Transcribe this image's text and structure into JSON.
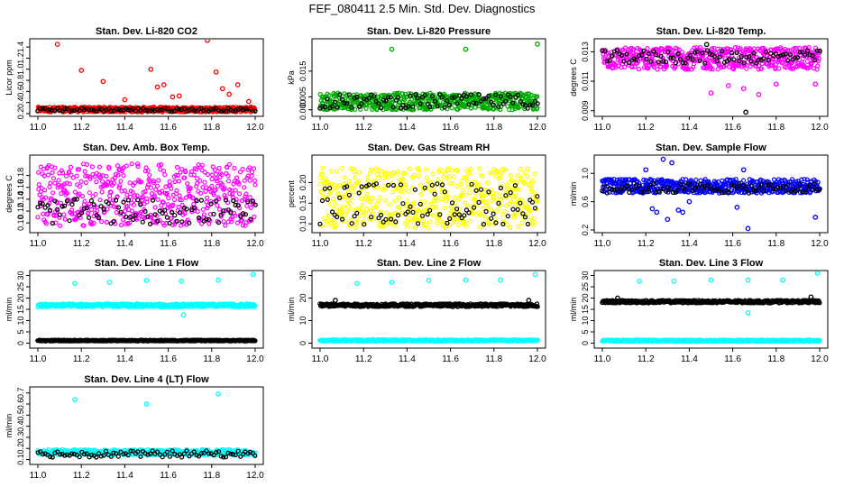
{
  "figure": {
    "title": "FEF_080411  2.5 Min. Std. Dev. Diagnostics"
  },
  "chart_data": [
    {
      "type": "scatter",
      "title": "Stan. Dev. Li-820 CO2",
      "ylabel": "Licor ppm",
      "xlim": [
        11.0,
        12.0
      ],
      "ylim": [
        0.2,
        1.5
      ],
      "xticks": [
        "11.0",
        "11.2",
        "11.4",
        "11.6",
        "11.8",
        "12.0"
      ],
      "yticks": [
        "0.2",
        "0.4",
        "0.6",
        "0.8",
        "1.0",
        "1.2",
        "1.4"
      ],
      "ytick_values": [
        0.2,
        0.4,
        0.6,
        0.8,
        1.0,
        1.2,
        1.4
      ],
      "series": [
        {
          "name": "primary",
          "color": "#ff0000",
          "pattern": {
            "low": 0.23,
            "high": 0.32
          }
        },
        {
          "name": "secondary",
          "color": "#000000",
          "pattern": {
            "low": 0.24,
            "high": 0.3,
            "sparse": true
          }
        },
        {
          "name": "outliers",
          "color": "#ff0000",
          "points": [
            [
              11.09,
              1.45
            ],
            [
              11.2,
              0.98
            ],
            [
              11.3,
              0.78
            ],
            [
              11.4,
              0.45
            ],
            [
              11.52,
              1.0
            ],
            [
              11.55,
              0.68
            ],
            [
              11.58,
              0.72
            ],
            [
              11.62,
              0.5
            ],
            [
              11.65,
              0.52
            ],
            [
              11.78,
              1.52
            ],
            [
              11.82,
              0.95
            ],
            [
              11.85,
              0.65
            ],
            [
              11.88,
              0.55
            ],
            [
              11.92,
              0.72
            ],
            [
              11.97,
              0.42
            ],
            [
              11.98,
              0.32
            ]
          ]
        }
      ]
    },
    {
      "type": "scatter",
      "title": "Stan. Dev. Li-820 Pressure",
      "ylabel": "kPa",
      "xlim": [
        11.0,
        12.0
      ],
      "ylim": [
        -0.0015,
        0.0265
      ],
      "xticks": [
        "11.0",
        "11.2",
        "11.4",
        "11.6",
        "11.8",
        "12.0"
      ],
      "yticks": [
        "0.000",
        "0.005",
        "0.015"
      ],
      "ytick_values": [
        0.0,
        0.005,
        0.015
      ],
      "series": [
        {
          "name": "primary",
          "color": "#00aa00",
          "pattern": {
            "low": 0.0,
            "high": 0.0065
          }
        },
        {
          "name": "secondary",
          "color": "#000000",
          "pattern": {
            "low": 0.0005,
            "high": 0.006,
            "sparse": true
          }
        },
        {
          "name": "outliers",
          "color": "#00aa00",
          "points": [
            [
              11.33,
              0.0235
            ],
            [
              11.67,
              0.0235
            ],
            [
              12.0,
              0.0255
            ]
          ]
        }
      ]
    },
    {
      "type": "scatter",
      "title": "Stan. Dev. Li-820 Temp.",
      "ylabel": "degrees C",
      "xlim": [
        11.0,
        12.0
      ],
      "ylim": [
        0.0088,
        0.0137
      ],
      "xticks": [
        "11.0",
        "11.2",
        "11.4",
        "11.6",
        "11.8",
        "12.0"
      ],
      "yticks": [
        "0.009",
        "0.011",
        "0.013"
      ],
      "ytick_values": [
        0.009,
        0.011,
        0.013
      ],
      "series": [
        {
          "name": "primary",
          "color": "#ff00ff",
          "pattern": {
            "low": 0.0118,
            "high": 0.0133
          }
        },
        {
          "name": "secondary",
          "color": "#000000",
          "pattern": {
            "low": 0.0122,
            "high": 0.0131,
            "sparse": true
          }
        },
        {
          "name": "outliers",
          "color": "#ff00ff",
          "points": [
            [
              11.5,
              0.0102
            ],
            [
              11.58,
              0.0107
            ],
            [
              11.65,
              0.0105
            ],
            [
              11.72,
              0.0101
            ],
            [
              11.8,
              0.0108
            ],
            [
              11.98,
              0.0108
            ]
          ]
        },
        {
          "name": "outliers-black",
          "color": "#000000",
          "points": [
            [
              11.66,
              0.0089
            ],
            [
              11.48,
              0.0135
            ]
          ]
        }
      ]
    },
    {
      "type": "scatter",
      "title": "Stan. Dev. Amb. Box Temp.",
      "ylabel": "degrees C",
      "xlim": [
        11.0,
        12.0
      ],
      "ylim": [
        0.088,
        0.21
      ],
      "xticks": [
        "11.0",
        "11.2",
        "11.4",
        "11.6",
        "11.8",
        "12.0"
      ],
      "yticks": [
        "0.10",
        "0.12",
        "0.14",
        "0.16",
        "0.18"
      ],
      "ytick_values": [
        0.1,
        0.12,
        0.14,
        0.16,
        0.18
      ],
      "series": [
        {
          "name": "primary",
          "color": "#ff00ff",
          "pattern": {
            "low": 0.095,
            "high": 0.2
          }
        },
        {
          "name": "secondary",
          "color": "#000000",
          "pattern": {
            "low": 0.098,
            "high": 0.14,
            "sparse": true
          }
        }
      ]
    },
    {
      "type": "scatter",
      "title": "Stan. Dev. Gas Stream RH",
      "ylabel": "percent",
      "xlim": [
        11.0,
        12.0
      ],
      "ylim": [
        0.085,
        0.26
      ],
      "xticks": [
        "11.0",
        "11.2",
        "11.4",
        "11.6",
        "11.8",
        "12.0"
      ],
      "yticks": [
        "0.10",
        "0.15",
        "0.20"
      ],
      "ytick_values": [
        0.1,
        0.15,
        0.2
      ],
      "series": [
        {
          "name": "primary",
          "color": "#ffff00",
          "pattern": {
            "low": 0.09,
            "high": 0.235
          }
        },
        {
          "name": "secondary",
          "color": "#000000",
          "pattern": {
            "low": 0.098,
            "high": 0.2,
            "sparse": true
          }
        }
      ]
    },
    {
      "type": "scatter",
      "title": "Stan. Dev. Sample Flow",
      "ylabel": "ml/min",
      "xlim": [
        11.0,
        12.0
      ],
      "ylim": [
        0.2,
        1.22
      ],
      "xticks": [
        "11.0",
        "11.2",
        "11.4",
        "11.6",
        "11.8",
        "12.0"
      ],
      "yticks": [
        "0.2",
        "0.6",
        "1.0"
      ],
      "ytick_values": [
        0.2,
        0.6,
        1.0
      ],
      "series": [
        {
          "name": "primary",
          "color": "#0000ff",
          "pattern": {
            "low": 0.72,
            "high": 0.92
          }
        },
        {
          "name": "secondary",
          "color": "#000000",
          "pattern": {
            "low": 0.72,
            "high": 0.86,
            "sparse": true
          }
        },
        {
          "name": "outliers",
          "color": "#0000ff",
          "points": [
            [
              11.2,
              1.05
            ],
            [
              11.23,
              0.5
            ],
            [
              11.25,
              0.45
            ],
            [
              11.28,
              1.2
            ],
            [
              11.3,
              0.35
            ],
            [
              11.32,
              1.15
            ],
            [
              11.35,
              0.48
            ],
            [
              11.37,
              0.45
            ],
            [
              11.4,
              0.6
            ],
            [
              11.62,
              0.52
            ],
            [
              11.67,
              0.22
            ],
            [
              11.65,
              1.05
            ],
            [
              11.98,
              0.38
            ]
          ]
        }
      ]
    },
    {
      "type": "scatter",
      "title": "Stan. Dev. Line 1 Flow",
      "ylabel": "ml/min",
      "xlim": [
        11.0,
        12.0
      ],
      "ylim": [
        -1,
        31
      ],
      "xticks": [
        "11.0",
        "11.2",
        "11.4",
        "11.6",
        "11.8",
        "12.0"
      ],
      "yticks": [
        "0",
        "5",
        "10",
        "15",
        "20",
        "25",
        "30"
      ],
      "ytick_values": [
        0,
        5,
        10,
        15,
        20,
        25,
        30
      ],
      "series": [
        {
          "name": "primary",
          "color": "#00ffff",
          "pattern": {
            "low": 16.0,
            "high": 17.5,
            "dense": true
          }
        },
        {
          "name": "secondary",
          "color": "#000000",
          "pattern": {
            "low": 0.9,
            "high": 1.4,
            "dense": true
          }
        },
        {
          "name": "outliers",
          "color": "#00ffff",
          "points": [
            [
              11.17,
              26.5
            ],
            [
              11.33,
              27
            ],
            [
              11.5,
              27.8
            ],
            [
              11.66,
              27.5
            ],
            [
              11.67,
              12.5
            ],
            [
              11.83,
              28
            ],
            [
              11.99,
              30.5
            ]
          ]
        }
      ]
    },
    {
      "type": "scatter",
      "title": "Stan. Dev. Line 2 Flow",
      "ylabel": "ml/min",
      "xlim": [
        11.0,
        12.0
      ],
      "ylim": [
        -1,
        31
      ],
      "xticks": [
        "11.0",
        "11.2",
        "11.4",
        "11.6",
        "11.8",
        "12.0"
      ],
      "yticks": [
        "0",
        "10",
        "20",
        "30"
      ],
      "ytick_values": [
        0,
        10,
        20,
        30
      ],
      "series": [
        {
          "name": "primary",
          "color": "#00ffff",
          "pattern": {
            "low": 0.8,
            "high": 1.6,
            "dense": true
          }
        },
        {
          "name": "secondary",
          "color": "#000000",
          "pattern": {
            "low": 16.2,
            "high": 17.5,
            "dense": true
          }
        },
        {
          "name": "outliers",
          "color": "#00ffff",
          "points": [
            [
              11.17,
              26.5
            ],
            [
              11.33,
              27
            ],
            [
              11.5,
              27.8
            ],
            [
              11.67,
              28
            ],
            [
              11.83,
              28
            ],
            [
              11.99,
              30.5
            ]
          ]
        },
        {
          "name": "outliers-black",
          "color": "#000000",
          "points": [
            [
              11.07,
              19
            ],
            [
              11.96,
              19
            ]
          ]
        }
      ]
    },
    {
      "type": "scatter",
      "title": "Stan. Dev. Line 3 Flow",
      "ylabel": "ml/min",
      "xlim": [
        11.0,
        12.0
      ],
      "ylim": [
        -1,
        31
      ],
      "xticks": [
        "11.0",
        "11.2",
        "11.4",
        "11.6",
        "11.8",
        "12.0"
      ],
      "yticks": [
        "0",
        "5",
        "10",
        "15",
        "20",
        "25",
        "30"
      ],
      "ytick_values": [
        0,
        5,
        10,
        15,
        20,
        25,
        30
      ],
      "series": [
        {
          "name": "primary",
          "color": "#00ffff",
          "pattern": {
            "low": 0.7,
            "high": 1.5,
            "dense": true
          }
        },
        {
          "name": "secondary",
          "color": "#000000",
          "pattern": {
            "low": 17.8,
            "high": 19.0,
            "dense": true
          }
        },
        {
          "name": "outliers",
          "color": "#00ffff",
          "points": [
            [
              11.17,
              27.5
            ],
            [
              11.33,
              27.5
            ],
            [
              11.5,
              28
            ],
            [
              11.67,
              28
            ],
            [
              11.67,
              13.5
            ],
            [
              11.83,
              28
            ],
            [
              11.99,
              31
            ]
          ]
        },
        {
          "name": "outliers-black",
          "color": "#000000",
          "points": [
            [
              11.07,
              20
            ],
            [
              11.96,
              20.5
            ]
          ]
        }
      ]
    },
    {
      "type": "scatter",
      "title": "Stan. Dev. Line 4 (LT) Flow",
      "ylabel": "ml/min",
      "xlim": [
        11.0,
        12.0
      ],
      "ylim": [
        0.08,
        0.73
      ],
      "xticks": [
        "11.0",
        "11.2",
        "11.4",
        "11.6",
        "11.8",
        "12.0"
      ],
      "yticks": [
        "0.1",
        "0.2",
        "0.3",
        "0.4",
        "0.5",
        "0.6",
        "0.7"
      ],
      "ytick_values": [
        0.1,
        0.2,
        0.3,
        0.4,
        0.5,
        0.6,
        0.7
      ],
      "series": [
        {
          "name": "primary",
          "color": "#00ffff",
          "pattern": {
            "low": 0.14,
            "high": 0.19,
            "dense": true
          }
        },
        {
          "name": "secondary",
          "color": "#000000",
          "pattern": {
            "low": 0.12,
            "high": 0.18,
            "sparse": true
          }
        },
        {
          "name": "outliers",
          "color": "#00ffff",
          "points": [
            [
              11.17,
              0.64
            ],
            [
              11.5,
              0.6
            ],
            [
              11.83,
              0.69
            ]
          ]
        }
      ]
    }
  ]
}
